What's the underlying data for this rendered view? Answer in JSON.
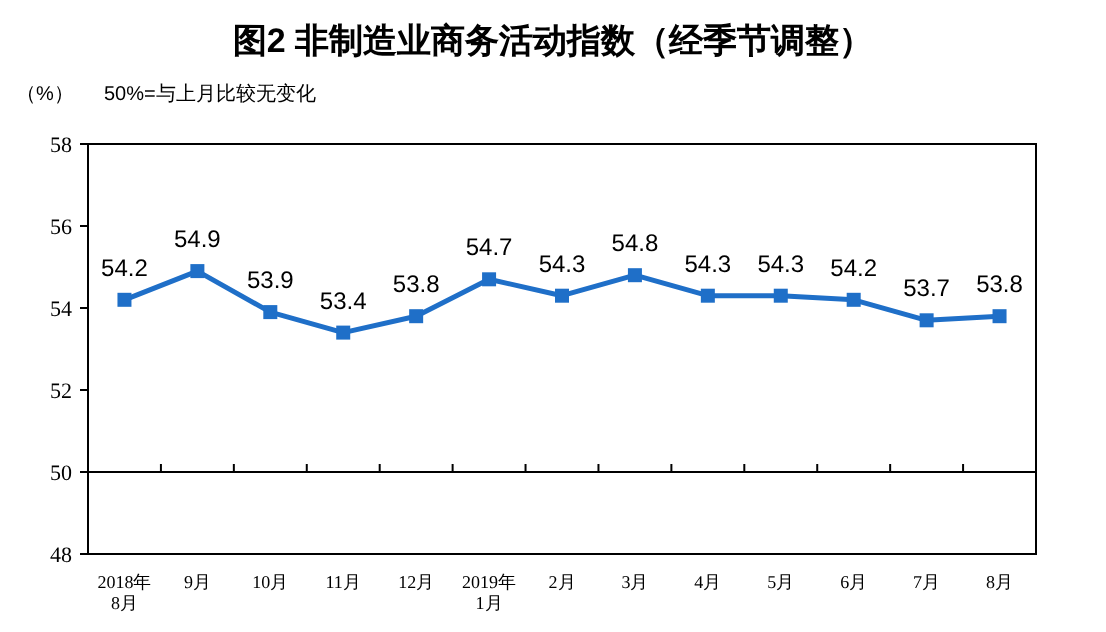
{
  "chart_data": {
    "type": "line",
    "title": "图2 非制造业商务活动指数（经季节调整）",
    "ylabel": "（%）",
    "annotations": [
      "50%=与上月比较无变化"
    ],
    "categories": [
      "2018年\n8月",
      "9月",
      "10月",
      "11月",
      "12月",
      "2019年\n1月",
      "2月",
      "3月",
      "4月",
      "5月",
      "6月",
      "7月",
      "8月"
    ],
    "series": [
      {
        "color": "#1f6fc8",
        "values": [
          54.2,
          54.9,
          53.9,
          53.4,
          53.8,
          54.7,
          54.3,
          54.8,
          54.3,
          54.3,
          54.2,
          53.7,
          53.8
        ]
      }
    ],
    "ylim": [
      48,
      58
    ],
    "yticks": [
      48,
      50,
      52,
      54,
      56,
      58
    ],
    "ref_lines": [
      {
        "axis": "y",
        "value": 50,
        "color": "#000000"
      }
    ],
    "data_labels": true,
    "marker": "square",
    "line_style": "solid",
    "grid": false
  }
}
